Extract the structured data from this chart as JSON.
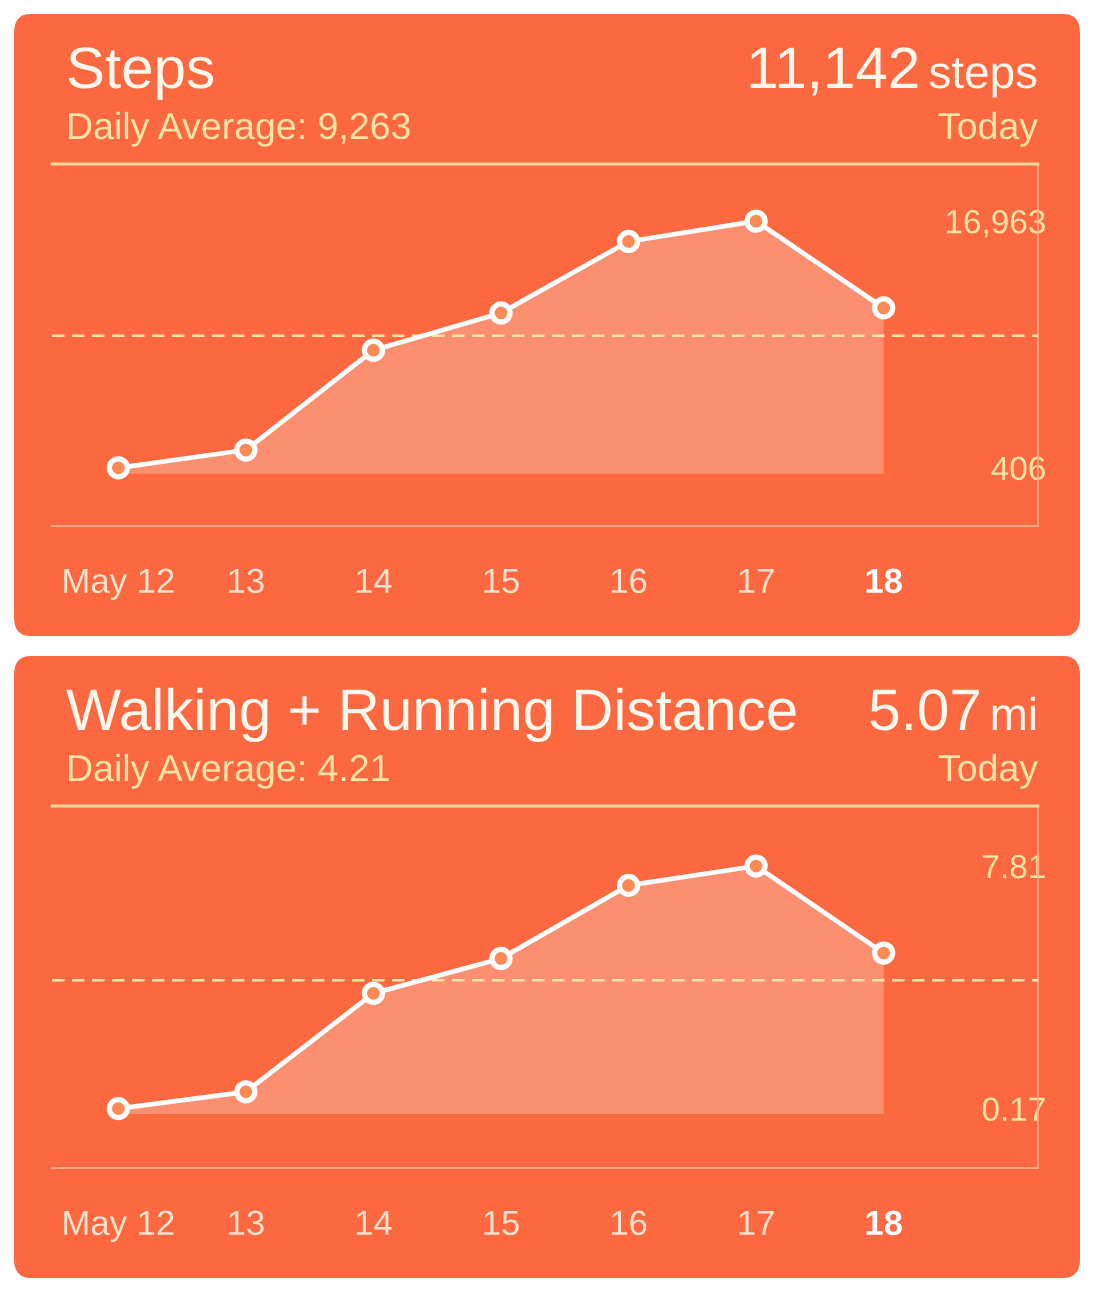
{
  "chart_data": [
    {
      "type": "area",
      "title": "Steps",
      "subtitle": "Daily Average: 9,263",
      "annotations": [
        "11,142",
        "steps",
        "Today"
      ],
      "categories": [
        "May 12",
        "13",
        "14",
        "15",
        "16",
        "17",
        "18"
      ],
      "series": [
        {
          "color": "#ffffff",
          "values": [
            406,
            1600,
            8300,
            10800,
            15600,
            16963,
            11142
          ]
        }
      ],
      "ylim": [
        -3500,
        20800
      ],
      "yticks": [
        406,
        {
          "value": 16963,
          "label": "16,963"
        }
      ],
      "ref_lines": [
        {
          "axis": "y",
          "value": 9263,
          "color": "#fde3a7",
          "line_style": "dashed"
        }
      ],
      "marker": "circle"
    },
    {
      "type": "area",
      "title": "Walking + Running Distance",
      "subtitle": "Daily Average: 4.21",
      "annotations": [
        "5.07",
        "mi",
        "Today"
      ],
      "categories": [
        "May 12",
        "13",
        "14",
        "15",
        "16",
        "17",
        "18"
      ],
      "series": [
        {
          "color": "#ffffff",
          "values": [
            0.17,
            0.7,
            3.8,
            4.9,
            7.2,
            7.81,
            5.07
          ]
        }
      ],
      "ylim": [
        -1.7,
        9.7
      ],
      "yticks": [
        0.17,
        7.81
      ],
      "ref_lines": [
        {
          "axis": "y",
          "value": 4.21,
          "color": "#fde3a7",
          "line_style": "dashed"
        }
      ],
      "marker": "circle"
    }
  ]
}
